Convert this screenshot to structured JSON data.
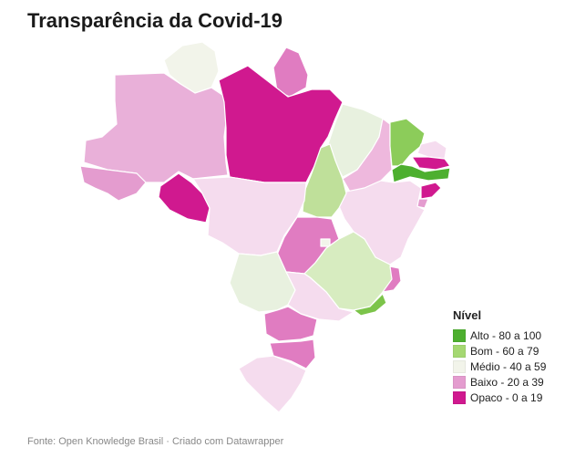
{
  "title": "Transparência da Covid-19",
  "colors": {
    "alto": "#4daf2f",
    "bom": "#a5d872",
    "medio": "#f2f4ea",
    "baixo": "#e49ccf",
    "opaco": "#d0198f",
    "border": "#ffffff"
  },
  "legend": {
    "title": "Nível",
    "items": [
      {
        "label": "Alto - 80 a 100",
        "color": "#4daf2f"
      },
      {
        "label": "Bom - 60 a 79",
        "color": "#a5d872"
      },
      {
        "label": "Médio - 40 a 59",
        "color": "#f2f4ea"
      },
      {
        "label": "Baixo - 20 a 39",
        "color": "#e49ccf"
      },
      {
        "label": "Opaco - 0 a 19",
        "color": "#d0198f"
      }
    ]
  },
  "source": "Fonte: Open Knowledge Brasil · Criado com Datawrapper"
}
